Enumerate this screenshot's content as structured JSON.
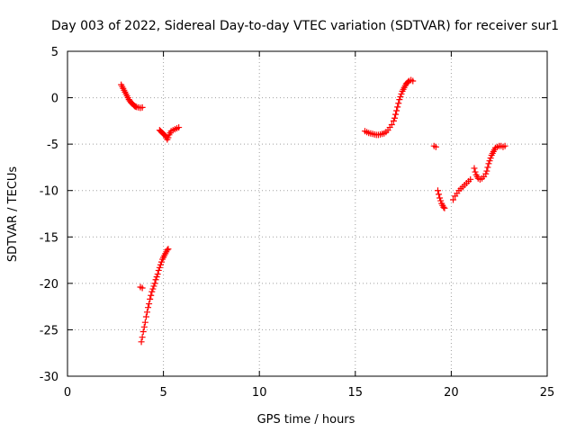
{
  "chart_data": {
    "type": "scatter",
    "title": "Day 003 of 2022, Sidereal Day-to-day VTEC variation (SDTVAR) for receiver sur1",
    "xlabel": "GPS time / hours",
    "ylabel": "SDTVAR / TECUs",
    "xlim": [
      0,
      25
    ],
    "ylim": [
      -30,
      5
    ],
    "xticks": [
      0,
      5,
      10,
      15,
      20,
      25
    ],
    "yticks": [
      5,
      0,
      -5,
      -10,
      -15,
      -20,
      -25,
      -30
    ],
    "grid": true,
    "marker": "plus",
    "color": "#ff0000",
    "points": [
      [
        2.8,
        1.4
      ],
      [
        2.85,
        1.2
      ],
      [
        2.9,
        1.0
      ],
      [
        2.95,
        0.8
      ],
      [
        3.0,
        0.6
      ],
      [
        3.05,
        0.4
      ],
      [
        3.1,
        0.2
      ],
      [
        3.15,
        0.0
      ],
      [
        3.2,
        -0.2
      ],
      [
        3.25,
        -0.35
      ],
      [
        3.3,
        -0.5
      ],
      [
        3.35,
        -0.6
      ],
      [
        3.4,
        -0.7
      ],
      [
        3.45,
        -0.8
      ],
      [
        3.5,
        -0.9
      ],
      [
        3.55,
        -0.95
      ],
      [
        3.6,
        -1.0
      ],
      [
        3.7,
        -1.05
      ],
      [
        3.8,
        -1.1
      ],
      [
        3.9,
        -1.05
      ],
      [
        4.8,
        -3.5
      ],
      [
        4.85,
        -3.6
      ],
      [
        4.9,
        -3.7
      ],
      [
        4.95,
        -3.8
      ],
      [
        5.0,
        -3.9
      ],
      [
        5.05,
        -4.0
      ],
      [
        5.1,
        -4.1
      ],
      [
        5.15,
        -4.3
      ],
      [
        5.2,
        -4.5
      ],
      [
        5.25,
        -4.3
      ],
      [
        5.3,
        -4.0
      ],
      [
        5.35,
        -3.8
      ],
      [
        5.4,
        -3.6
      ],
      [
        5.5,
        -3.5
      ],
      [
        5.6,
        -3.4
      ],
      [
        5.7,
        -3.3
      ],
      [
        5.8,
        -3.2
      ],
      [
        3.8,
        -20.4
      ],
      [
        3.9,
        -20.5
      ],
      [
        3.85,
        -26.3
      ],
      [
        3.9,
        -25.8
      ],
      [
        3.95,
        -25.2
      ],
      [
        4.0,
        -24.7
      ],
      [
        4.05,
        -24.2
      ],
      [
        4.1,
        -23.6
      ],
      [
        4.15,
        -23.1
      ],
      [
        4.2,
        -22.6
      ],
      [
        4.25,
        -22.2
      ],
      [
        4.3,
        -21.7
      ],
      [
        4.35,
        -21.3
      ],
      [
        4.4,
        -20.9
      ],
      [
        4.45,
        -20.6
      ],
      [
        4.5,
        -20.3
      ],
      [
        4.55,
        -20.0
      ],
      [
        4.6,
        -19.6
      ],
      [
        4.65,
        -19.3
      ],
      [
        4.7,
        -19.0
      ],
      [
        4.75,
        -18.6
      ],
      [
        4.8,
        -18.3
      ],
      [
        4.85,
        -18.0
      ],
      [
        4.9,
        -17.7
      ],
      [
        4.95,
        -17.4
      ],
      [
        5.0,
        -17.2
      ],
      [
        5.05,
        -17.0
      ],
      [
        5.1,
        -16.8
      ],
      [
        5.15,
        -16.6
      ],
      [
        5.2,
        -16.4
      ],
      [
        5.25,
        -16.3
      ],
      [
        15.5,
        -3.6
      ],
      [
        15.6,
        -3.7
      ],
      [
        15.7,
        -3.8
      ],
      [
        15.8,
        -3.85
      ],
      [
        15.9,
        -3.9
      ],
      [
        16.0,
        -3.95
      ],
      [
        16.1,
        -4.0
      ],
      [
        16.2,
        -4.0
      ],
      [
        16.3,
        -3.95
      ],
      [
        16.4,
        -3.9
      ],
      [
        16.5,
        -3.85
      ],
      [
        16.6,
        -3.7
      ],
      [
        16.7,
        -3.5
      ],
      [
        16.8,
        -3.2
      ],
      [
        16.9,
        -2.9
      ],
      [
        17.0,
        -2.5
      ],
      [
        17.05,
        -2.2
      ],
      [
        17.1,
        -1.8
      ],
      [
        17.15,
        -1.4
      ],
      [
        17.2,
        -1.0
      ],
      [
        17.25,
        -0.6
      ],
      [
        17.3,
        -0.2
      ],
      [
        17.35,
        0.1
      ],
      [
        17.4,
        0.4
      ],
      [
        17.45,
        0.7
      ],
      [
        17.5,
        0.9
      ],
      [
        17.55,
        1.1
      ],
      [
        17.6,
        1.3
      ],
      [
        17.65,
        1.5
      ],
      [
        17.7,
        1.6
      ],
      [
        17.75,
        1.7
      ],
      [
        17.8,
        1.8
      ],
      [
        17.9,
        1.9
      ],
      [
        18.0,
        1.8
      ],
      [
        19.1,
        -5.2
      ],
      [
        19.2,
        -5.3
      ],
      [
        19.3,
        -10.0
      ],
      [
        19.35,
        -10.4
      ],
      [
        19.4,
        -10.8
      ],
      [
        19.45,
        -11.1
      ],
      [
        19.5,
        -11.4
      ],
      [
        19.55,
        -11.6
      ],
      [
        19.6,
        -11.8
      ],
      [
        19.65,
        -11.9
      ],
      [
        20.1,
        -11.0
      ],
      [
        20.2,
        -10.6
      ],
      [
        20.3,
        -10.3
      ],
      [
        20.4,
        -10.0
      ],
      [
        20.5,
        -9.8
      ],
      [
        20.6,
        -9.6
      ],
      [
        20.7,
        -9.4
      ],
      [
        20.8,
        -9.2
      ],
      [
        20.9,
        -9.0
      ],
      [
        21.0,
        -8.8
      ],
      [
        21.2,
        -7.6
      ],
      [
        21.25,
        -8.0
      ],
      [
        21.3,
        -8.3
      ],
      [
        21.35,
        -8.5
      ],
      [
        21.4,
        -8.7
      ],
      [
        21.5,
        -8.8
      ],
      [
        21.6,
        -8.7
      ],
      [
        21.7,
        -8.5
      ],
      [
        21.8,
        -8.2
      ],
      [
        21.85,
        -7.9
      ],
      [
        21.9,
        -7.5
      ],
      [
        21.95,
        -7.1
      ],
      [
        22.0,
        -6.8
      ],
      [
        22.05,
        -6.5
      ],
      [
        22.1,
        -6.2
      ],
      [
        22.15,
        -6.0
      ],
      [
        22.2,
        -5.8
      ],
      [
        22.25,
        -5.6
      ],
      [
        22.3,
        -5.4
      ],
      [
        22.4,
        -5.3
      ],
      [
        22.5,
        -5.2
      ],
      [
        22.6,
        -5.2
      ],
      [
        22.7,
        -5.3
      ],
      [
        22.8,
        -5.2
      ]
    ]
  }
}
